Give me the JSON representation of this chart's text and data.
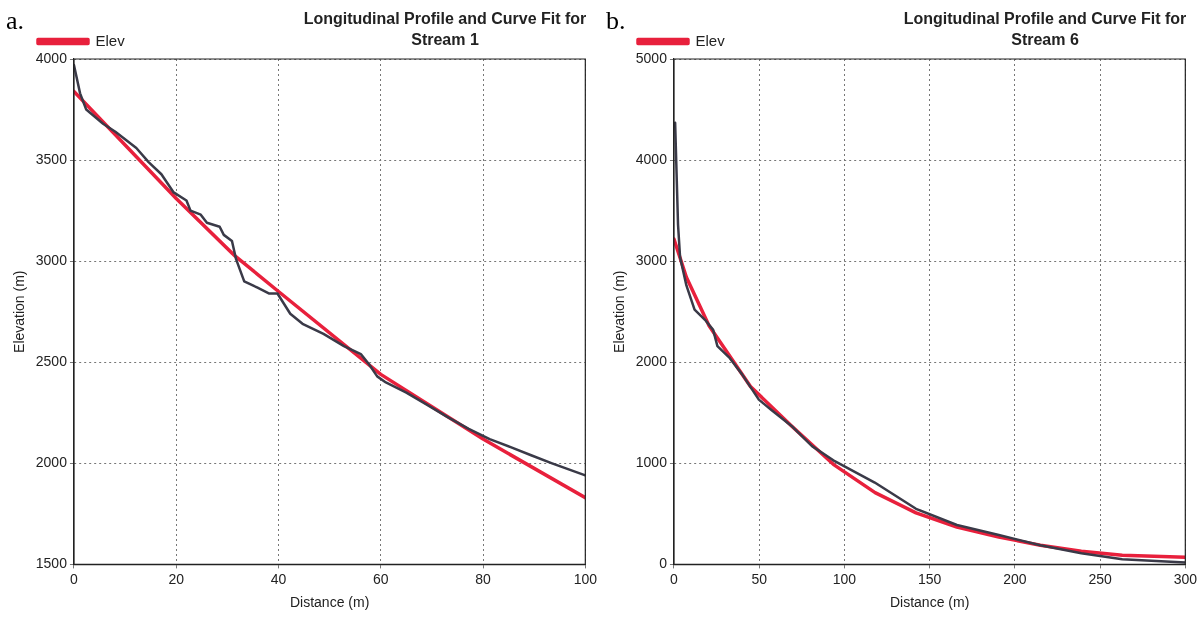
{
  "chart_data": [
    {
      "type": "line",
      "title": "Longitudinal Profile and Curve Fit for Stream 1",
      "xlabel": "Distance (m)",
      "ylabel": "Elevation (m)",
      "annotations": [
        "a."
      ],
      "xlim": [
        0,
        100
      ],
      "xticks": [
        0,
        20,
        40,
        60,
        80,
        100
      ],
      "ylim": [
        1500,
        4000
      ],
      "yticks": [
        1500,
        2000,
        2500,
        3000,
        3500,
        4000
      ],
      "grid": true,
      "legend": "top left",
      "marker": "none",
      "line_style": "solid",
      "series": [
        {
          "color": "#3a3a48",
          "x": [
            0,
            1.2,
            2.4,
            5.7,
            8.1,
            12.2,
            14.6,
            17.1,
            19.5,
            22,
            22.8,
            24.8,
            26,
            28.5,
            29.3,
            30.9,
            31.7,
            33.3,
            35.8,
            38.2,
            39.8,
            42.3,
            44.7,
            48.8,
            52.8,
            56.1,
            57.7,
            59.3,
            61,
            65,
            69,
            73,
            77.2,
            81.3,
            85.4,
            89.4,
            93.5,
            100
          ],
          "values": [
            3970,
            3830,
            3750,
            3680,
            3640,
            3560,
            3490,
            3430,
            3340,
            3300,
            3250,
            3230,
            3190,
            3170,
            3130,
            3100,
            3010,
            2900,
            2870,
            2840,
            2840,
            2740,
            2690,
            2640,
            2580,
            2540,
            2490,
            2430,
            2400,
            2350,
            2290,
            2230,
            2170,
            2120,
            2080,
            2040,
            2000,
            1940
          ]
        },
        {
          "name": "Elev",
          "color": "#e8203c",
          "x": [
            0,
            20,
            31.3,
            40,
            60,
            80,
            100
          ],
          "values": [
            3840,
            3310,
            3030,
            2850,
            2440,
            2120,
            1830
          ]
        }
      ]
    },
    {
      "type": "line",
      "title": "Longitudinal Profile and Curve Fit for Stream 6",
      "xlabel": "Distance (m)",
      "ylabel": "Elevation (m)",
      "annotations": [
        "b."
      ],
      "xlim": [
        0,
        300
      ],
      "xticks": [
        0,
        50,
        100,
        150,
        200,
        250,
        300
      ],
      "ylim": [
        0,
        5000
      ],
      "yticks": [
        0,
        1000,
        2000,
        3000,
        4000,
        5000
      ],
      "grid": true,
      "legend": "top left",
      "marker": "none",
      "line_style": "solid",
      "series": [
        {
          "color": "#3a3a48",
          "x": [
            0.7,
            2.4,
            3.6,
            7.3,
            12.1,
            18.2,
            23,
            25.5,
            32.8,
            40,
            49.8,
            57,
            69,
            81,
            93.5,
            117.8,
            142,
            166,
            190.6,
            214.9,
            239,
            263,
            300
          ],
          "values": [
            4370,
            3360,
            3040,
            2760,
            2520,
            2420,
            2320,
            2160,
            2040,
            1880,
            1630,
            1530,
            1370,
            1170,
            1030,
            810,
            550,
            390,
            290,
            190,
            110,
            50,
            20
          ]
        },
        {
          "name": "Elev",
          "color": "#e8203c",
          "x": [
            0,
            7.3,
            20.6,
            44.9,
            69,
            93.5,
            118,
            142,
            166,
            190.6,
            215,
            239,
            263,
            300
          ],
          "values": [
            3220,
            2840,
            2360,
            1760,
            1370,
            990,
            710,
            510,
            370,
            270,
            190,
            130,
            90,
            70
          ]
        }
      ]
    }
  ]
}
